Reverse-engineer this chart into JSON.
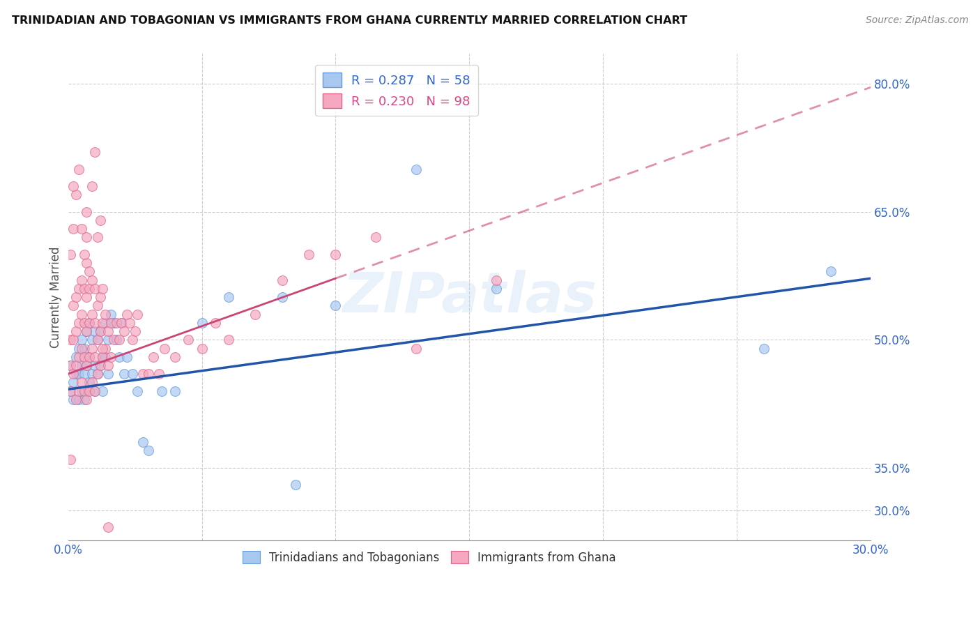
{
  "title": "TRINIDADIAN AND TOBAGONIAN VS IMMIGRANTS FROM GHANA CURRENTLY MARRIED CORRELATION CHART",
  "source": "Source: ZipAtlas.com",
  "ylabel": "Currently Married",
  "xlim": [
    0.0,
    0.3
  ],
  "ylim": [
    0.265,
    0.835
  ],
  "xticks": [
    0.0,
    0.05,
    0.1,
    0.15,
    0.2,
    0.25,
    0.3
  ],
  "xtick_labels": [
    "0.0%",
    "",
    "",
    "",
    "",
    "",
    "30.0%"
  ],
  "yticks": [
    0.3,
    0.35,
    0.5,
    0.65,
    0.8
  ],
  "ytick_labels": [
    "30.0%",
    "35.0%",
    "50.0%",
    "65.0%",
    "80.0%"
  ],
  "blue_color": "#a8c8f0",
  "blue_edge": "#6699dd",
  "pink_color": "#f5a8c0",
  "pink_edge": "#dd6688",
  "trend_blue": "#2255aa",
  "trend_pink": "#cc4477",
  "legend_line1": "R = 0.287   N = 58",
  "legend_line2": "R = 0.230   N = 98",
  "label1": "Trinidadians and Tobagonians",
  "label2": "Immigrants from Ghana",
  "watermark": "ZIPatlas",
  "blue_x": [
    0.001,
    0.001,
    0.002,
    0.002,
    0.003,
    0.003,
    0.004,
    0.004,
    0.004,
    0.005,
    0.005,
    0.005,
    0.006,
    0.006,
    0.006,
    0.007,
    0.007,
    0.007,
    0.008,
    0.008,
    0.008,
    0.009,
    0.009,
    0.01,
    0.01,
    0.01,
    0.011,
    0.011,
    0.012,
    0.012,
    0.013,
    0.013,
    0.014,
    0.014,
    0.015,
    0.015,
    0.016,
    0.017,
    0.018,
    0.019,
    0.02,
    0.021,
    0.022,
    0.024,
    0.026,
    0.028,
    0.03,
    0.035,
    0.04,
    0.05,
    0.06,
    0.08,
    0.085,
    0.1,
    0.13,
    0.16,
    0.26,
    0.285
  ],
  "blue_y": [
    0.44,
    0.47,
    0.45,
    0.43,
    0.46,
    0.48,
    0.43,
    0.46,
    0.49,
    0.44,
    0.47,
    0.5,
    0.43,
    0.46,
    0.49,
    0.44,
    0.47,
    0.51,
    0.45,
    0.48,
    0.52,
    0.46,
    0.5,
    0.44,
    0.47,
    0.51,
    0.46,
    0.5,
    0.47,
    0.51,
    0.48,
    0.44,
    0.48,
    0.52,
    0.46,
    0.5,
    0.53,
    0.52,
    0.5,
    0.48,
    0.52,
    0.46,
    0.48,
    0.46,
    0.44,
    0.38,
    0.37,
    0.44,
    0.44,
    0.52,
    0.55,
    0.55,
    0.33,
    0.54,
    0.7,
    0.56,
    0.49,
    0.58
  ],
  "pink_x": [
    0.001,
    0.001,
    0.001,
    0.002,
    0.002,
    0.002,
    0.003,
    0.003,
    0.003,
    0.003,
    0.004,
    0.004,
    0.004,
    0.004,
    0.005,
    0.005,
    0.005,
    0.005,
    0.006,
    0.006,
    0.006,
    0.006,
    0.007,
    0.007,
    0.007,
    0.007,
    0.007,
    0.008,
    0.008,
    0.008,
    0.008,
    0.009,
    0.009,
    0.009,
    0.009,
    0.01,
    0.01,
    0.01,
    0.01,
    0.011,
    0.011,
    0.011,
    0.012,
    0.012,
    0.012,
    0.013,
    0.013,
    0.013,
    0.014,
    0.014,
    0.015,
    0.015,
    0.016,
    0.016,
    0.017,
    0.018,
    0.019,
    0.02,
    0.021,
    0.022,
    0.023,
    0.024,
    0.025,
    0.026,
    0.028,
    0.03,
    0.032,
    0.034,
    0.036,
    0.04,
    0.045,
    0.05,
    0.055,
    0.06,
    0.07,
    0.08,
    0.09,
    0.1,
    0.115,
    0.001,
    0.002,
    0.003,
    0.004,
    0.005,
    0.006,
    0.007,
    0.007,
    0.008,
    0.009,
    0.01,
    0.011,
    0.012,
    0.013,
    0.015,
    0.001,
    0.002,
    0.13,
    0.16
  ],
  "pink_y": [
    0.44,
    0.47,
    0.5,
    0.46,
    0.5,
    0.54,
    0.43,
    0.47,
    0.51,
    0.55,
    0.44,
    0.48,
    0.52,
    0.56,
    0.45,
    0.49,
    0.53,
    0.57,
    0.44,
    0.48,
    0.52,
    0.56,
    0.43,
    0.47,
    0.51,
    0.55,
    0.59,
    0.44,
    0.48,
    0.52,
    0.56,
    0.45,
    0.49,
    0.53,
    0.57,
    0.44,
    0.48,
    0.52,
    0.56,
    0.46,
    0.5,
    0.54,
    0.47,
    0.51,
    0.55,
    0.48,
    0.52,
    0.56,
    0.49,
    0.53,
    0.47,
    0.51,
    0.48,
    0.52,
    0.5,
    0.52,
    0.5,
    0.52,
    0.51,
    0.53,
    0.52,
    0.5,
    0.51,
    0.53,
    0.46,
    0.46,
    0.48,
    0.46,
    0.49,
    0.48,
    0.5,
    0.49,
    0.52,
    0.5,
    0.53,
    0.57,
    0.6,
    0.6,
    0.62,
    0.6,
    0.63,
    0.67,
    0.7,
    0.63,
    0.6,
    0.62,
    0.65,
    0.58,
    0.68,
    0.72,
    0.62,
    0.64,
    0.49,
    0.28,
    0.36,
    0.68,
    0.49,
    0.57
  ],
  "blue_trend_x0": 0.0,
  "blue_trend_y0": 0.442,
  "blue_trend_x1": 0.3,
  "blue_trend_y1": 0.572,
  "pink_trend_solid_x0": 0.0,
  "pink_trend_solid_y0": 0.46,
  "pink_trend_solid_x1": 0.1,
  "pink_trend_solid_y1": 0.572,
  "pink_trend_dash_x0": 0.1,
  "pink_trend_dash_y0": 0.572,
  "pink_trend_dash_x1": 0.3,
  "pink_trend_dash_y1": 0.796
}
